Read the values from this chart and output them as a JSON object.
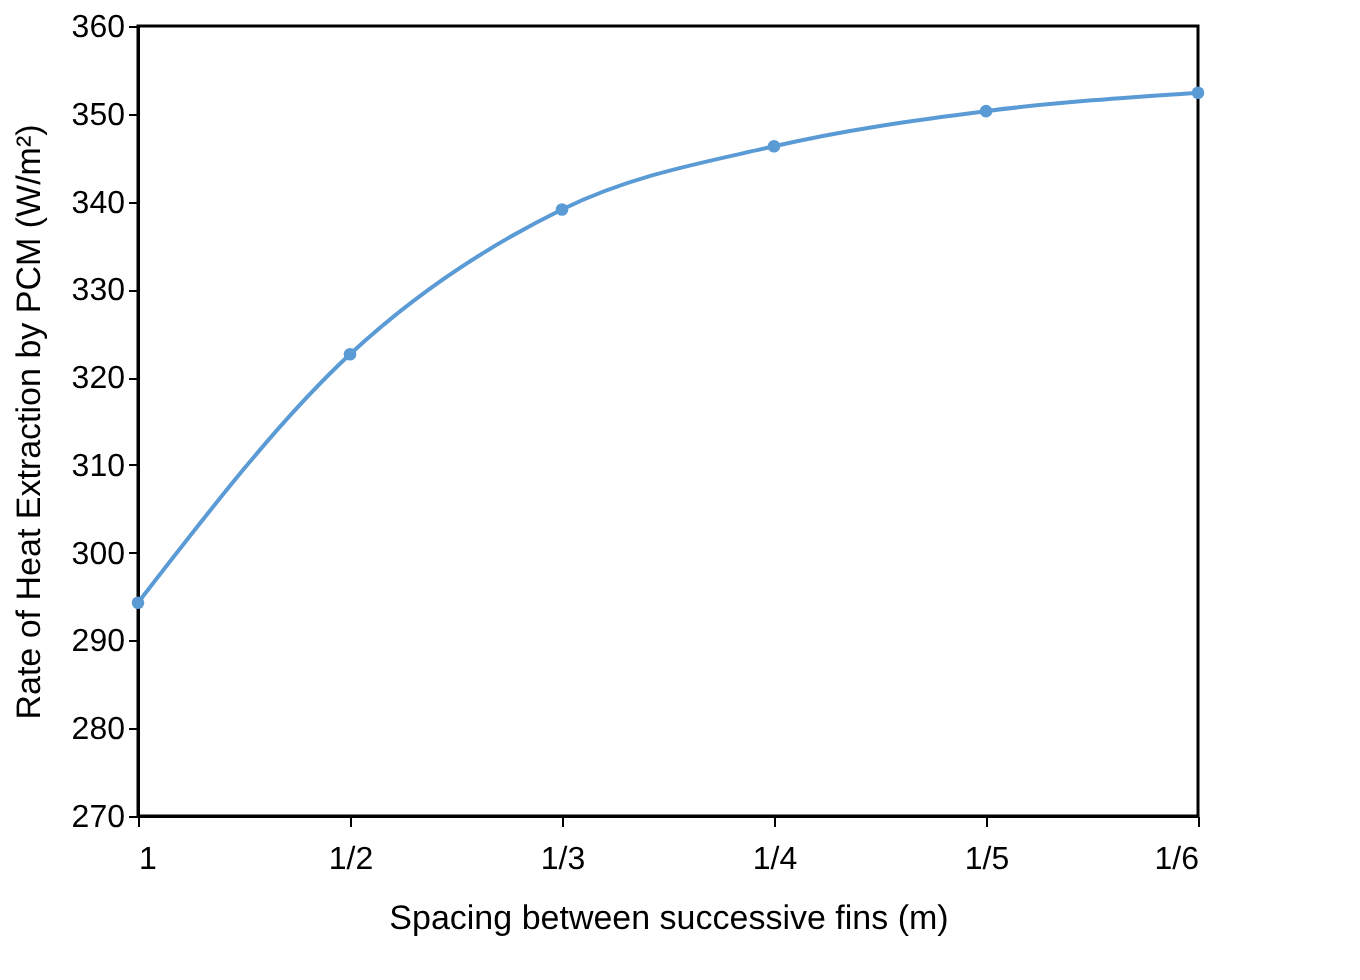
{
  "chart_data": {
    "type": "line",
    "xlabel": "Spacing between successive fins (m)",
    "ylabel": "Rate of Heat Extraction by PCM (W/m²)",
    "categories": [
      "1",
      "1/2",
      "1/3",
      "1/4",
      "1/5",
      "1/6"
    ],
    "series": [
      {
        "color": "#5b9bd5",
        "values": [
          294.3,
          322.6,
          339.1,
          346.3,
          350.3,
          352.4
        ]
      }
    ],
    "ylim": [
      270,
      360
    ],
    "yticks": [
      270,
      280,
      290,
      300,
      310,
      320,
      330,
      340,
      350,
      360
    ],
    "grid": false,
    "legend": false,
    "marker": "circle",
    "line_style": "solid"
  }
}
